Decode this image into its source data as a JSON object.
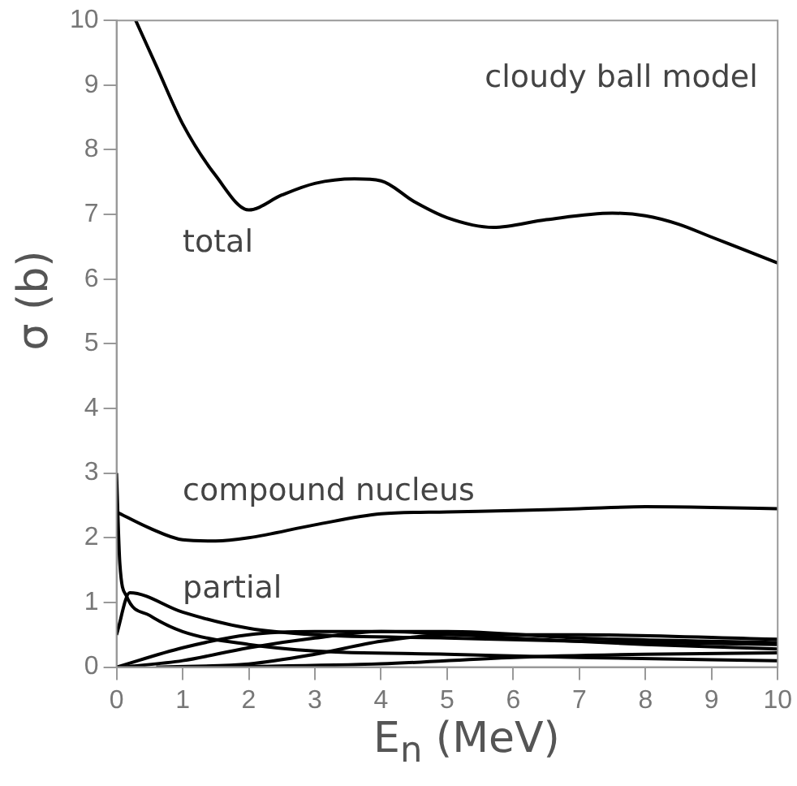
{
  "chart_data": {
    "type": "line",
    "xlabel": "E$_{n}$ (MeV)",
    "ylabel": "σ (b)",
    "xlim": [
      0,
      10
    ],
    "ylim": [
      0,
      10
    ],
    "xticks": [
      0,
      1,
      2,
      3,
      4,
      5,
      6,
      7,
      8,
      9,
      10
    ],
    "yticks": [
      0,
      1,
      2,
      3,
      4,
      5,
      6,
      7,
      8,
      9,
      10
    ],
    "grid": false,
    "legend": false,
    "marker": "none",
    "line_style": "solid",
    "annotations": [
      "cloudy ball model",
      "total",
      "compound nucleus",
      "partial"
    ],
    "series": [
      {
        "color": "#000000",
        "x": [
          0.29,
          0.6,
          1.0,
          1.5,
          2.0,
          2.5,
          3.0,
          3.6,
          4.0,
          4.5,
          5.0,
          5.7,
          6.5,
          7.5,
          8.0,
          8.5,
          9.0,
          9.5,
          10
        ],
        "values": [
          10,
          9.3,
          8.4,
          7.6,
          7.07,
          7.3,
          7.48,
          7.55,
          7.52,
          7.2,
          6.95,
          6.8,
          6.92,
          7.02,
          6.98,
          6.85,
          6.65,
          6.45,
          6.25
        ]
      },
      {
        "color": "#000000",
        "x": [
          0,
          0.5,
          1.0,
          1.5,
          2,
          3,
          4,
          5,
          6,
          7,
          8,
          9,
          10
        ],
        "values": [
          2.4,
          2.15,
          1.97,
          1.95,
          2.0,
          2.2,
          2.37,
          2.4,
          2.42,
          2.45,
          2.48,
          2.47,
          2.45
        ]
      },
      {
        "color": "#000000",
        "x": [
          0,
          0.05,
          0.15,
          0.5,
          1,
          2,
          3,
          5,
          7,
          10
        ],
        "values": [
          3,
          1.6,
          1.1,
          0.8,
          0.55,
          0.35,
          0.25,
          0.2,
          0.15,
          0.1
        ]
      },
      {
        "color": "#000000",
        "x": [
          0,
          0.2,
          1,
          2,
          3,
          5,
          7,
          10
        ],
        "values": [
          0.5,
          1.15,
          0.85,
          0.6,
          0.5,
          0.45,
          0.4,
          0.35
        ]
      },
      {
        "color": "#000000",
        "x": [
          0,
          1,
          2,
          3,
          4,
          6,
          8,
          10
        ],
        "values": [
          0,
          0.3,
          0.5,
          0.55,
          0.55,
          0.45,
          0.35,
          0.28
        ]
      },
      {
        "color": "#000000",
        "x": [
          0.1,
          1,
          2,
          3,
          4,
          5,
          7,
          10
        ],
        "values": [
          0,
          0.1,
          0.3,
          0.45,
          0.55,
          0.55,
          0.45,
          0.38
        ]
      },
      {
        "color": "#000000",
        "x": [
          0.6,
          2,
          3,
          4,
          5,
          7,
          10
        ],
        "values": [
          0,
          0.05,
          0.2,
          0.4,
          0.5,
          0.5,
          0.43
        ]
      },
      {
        "color": "#000000",
        "x": [
          1.5,
          4,
          6,
          8,
          10
        ],
        "values": [
          0,
          0.05,
          0.15,
          0.2,
          0.22
        ]
      }
    ]
  }
}
